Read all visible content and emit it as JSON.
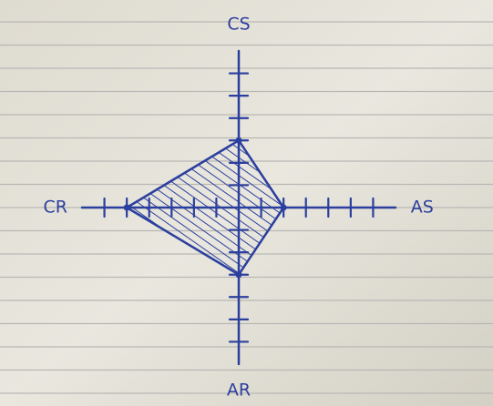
{
  "chart_data": {
    "type": "radar",
    "categories": [
      "CS",
      "AS",
      "AR",
      "CR"
    ],
    "values": [
      3,
      2,
      3,
      5
    ],
    "color": "#2b3f9e",
    "rlim": [
      0,
      7
    ],
    "rticks": [
      1,
      2,
      3,
      4,
      5,
      6
    ]
  }
}
